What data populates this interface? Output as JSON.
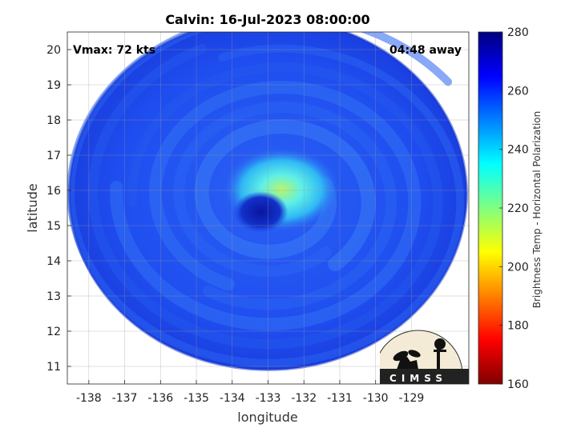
{
  "title": "Calvin: 16-Jul-2023 08:00:00",
  "annotations": {
    "vmax": "Vmax: 72 kts",
    "away": "04:48 away"
  },
  "logo": {
    "text": "CIMSS"
  },
  "colors": {
    "colormap": [
      "#000080",
      "#0000ff",
      "#0080ff",
      "#00ffff",
      "#80ff80",
      "#ffff00",
      "#ff8000",
      "#ff0000",
      "#800000"
    ],
    "ocean_base": "#1d4cf2",
    "eyewall": "#4fe6f5",
    "eye": "#0a1ca8"
  },
  "chart_data": {
    "type": "heatmap",
    "title": "Calvin: 16-Jul-2023 08:00:00",
    "xlabel": "longitude",
    "ylabel": "latitude",
    "xlim": [
      -138.6,
      -127.4
    ],
    "ylim": [
      10.5,
      20.5
    ],
    "xticks": [
      -138,
      -137,
      -136,
      -135,
      -134,
      -133,
      -132,
      -131,
      -130,
      -129
    ],
    "yticks": [
      11,
      12,
      13,
      14,
      15,
      16,
      17,
      18,
      19,
      20
    ],
    "grid": true,
    "colorbar": {
      "label": "Brightness Temp - Horizontal Polarization",
      "range": [
        160,
        280
      ],
      "ticks": [
        160,
        180,
        200,
        220,
        240,
        260,
        280
      ]
    },
    "storm_center": {
      "lon": -132.8,
      "lat": 15.8
    },
    "swath_center": {
      "lon": -133.0,
      "lat": 15.9
    },
    "typical_background_bt": 262,
    "eyewall_bt": 232,
    "eye_bt": 270
  }
}
